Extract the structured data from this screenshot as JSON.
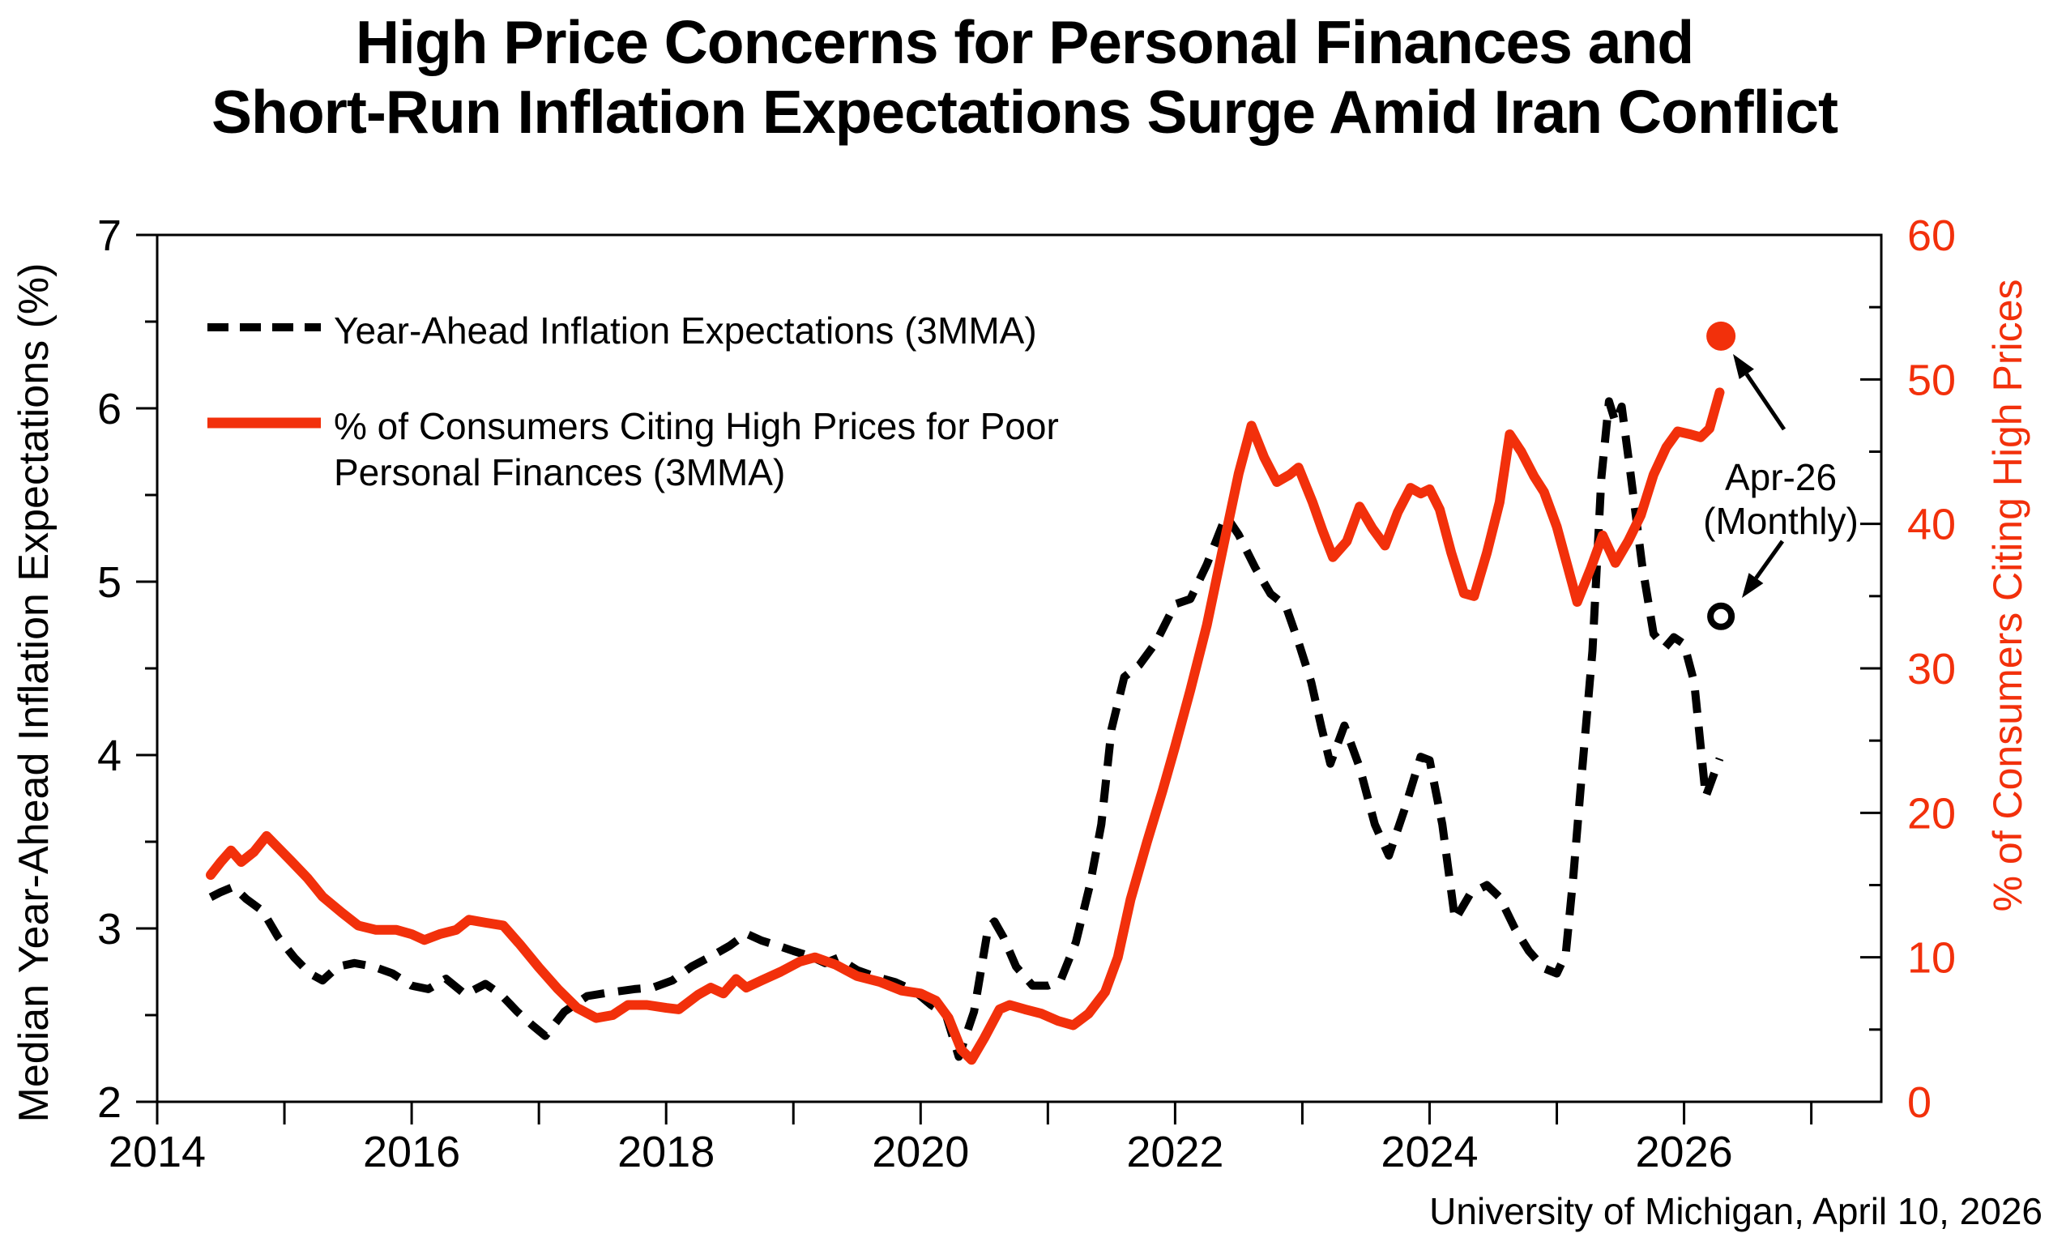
{
  "title": {
    "line1": "High Price Concerns for Personal Finances and",
    "line2": "Short-Run Inflation Expectations Surge Amid Iran Conflict"
  },
  "legend": {
    "item1_label": "Year-Ahead Inflation Expectations (3MMA)",
    "item2_label_line1": "% of Consumers Citing High Prices for Poor",
    "item2_label_line2": "Personal Finances (3MMA)"
  },
  "annotation": {
    "line1": "Apr-26",
    "line2": "(Monthly)"
  },
  "footer": {
    "source": "University of Michigan, April 10, 2026"
  },
  "chart_data": {
    "type": "line",
    "title": "High Price Concerns for Personal Finances and Short-Run Inflation Expectations Surge Amid Iran Conflict",
    "grid": false,
    "legend_position": "top-left-inside",
    "x_axis": {
      "min": 2014,
      "max": 2027.55,
      "labeled_ticks": [
        2014,
        2016,
        2018,
        2020,
        2022,
        2024,
        2026
      ],
      "minor_ticks": [
        2015,
        2017,
        2019,
        2021,
        2023,
        2025,
        2027
      ]
    },
    "left_axis": {
      "label": "Median Year-Ahead Inflation Expectations (%)",
      "min": 2,
      "max": 7,
      "major_ticks": [
        2,
        3,
        4,
        5,
        6,
        7
      ],
      "minor_tick_step": 0.5,
      "color": "#000000"
    },
    "right_axis": {
      "label": "% of Consumers Citing High Prices",
      "min": 0,
      "max": 60,
      "major_ticks": [
        0,
        10,
        20,
        30,
        40,
        50,
        60
      ],
      "minor_tick_step": 5,
      "color": "#F2300B"
    },
    "series": [
      {
        "name": "Year-Ahead Inflation Expectations (3MMA)",
        "axis": "left",
        "style": "dashed",
        "color": "#000000",
        "points": [
          [
            2014.42,
            3.18
          ],
          [
            2014.5,
            3.21
          ],
          [
            2014.6,
            3.24
          ],
          [
            2014.7,
            3.17
          ],
          [
            2014.83,
            3.1
          ],
          [
            2014.95,
            2.95
          ],
          [
            2015.08,
            2.83
          ],
          [
            2015.2,
            2.74
          ],
          [
            2015.3,
            2.7
          ],
          [
            2015.42,
            2.78
          ],
          [
            2015.55,
            2.8
          ],
          [
            2015.7,
            2.78
          ],
          [
            2015.85,
            2.74
          ],
          [
            2016.0,
            2.67
          ],
          [
            2016.13,
            2.65
          ],
          [
            2016.27,
            2.71
          ],
          [
            2016.42,
            2.62
          ],
          [
            2016.58,
            2.68
          ],
          [
            2016.7,
            2.62
          ],
          [
            2016.83,
            2.52
          ],
          [
            2016.95,
            2.44
          ],
          [
            2017.05,
            2.38
          ],
          [
            2017.2,
            2.52
          ],
          [
            2017.38,
            2.61
          ],
          [
            2017.55,
            2.63
          ],
          [
            2017.75,
            2.65
          ],
          [
            2017.9,
            2.66
          ],
          [
            2018.05,
            2.7
          ],
          [
            2018.2,
            2.78
          ],
          [
            2018.38,
            2.85
          ],
          [
            2018.5,
            2.9
          ],
          [
            2018.63,
            2.97
          ],
          [
            2018.75,
            2.93
          ],
          [
            2018.88,
            2.9
          ],
          [
            2019.0,
            2.87
          ],
          [
            2019.13,
            2.84
          ],
          [
            2019.25,
            2.8
          ],
          [
            2019.35,
            2.83
          ],
          [
            2019.5,
            2.76
          ],
          [
            2019.65,
            2.72
          ],
          [
            2019.8,
            2.69
          ],
          [
            2019.95,
            2.64
          ],
          [
            2020.08,
            2.56
          ],
          [
            2020.2,
            2.5
          ],
          [
            2020.3,
            2.26
          ],
          [
            2020.42,
            2.52
          ],
          [
            2020.53,
            3.0
          ],
          [
            2020.58,
            3.04
          ],
          [
            2020.65,
            2.95
          ],
          [
            2020.75,
            2.78
          ],
          [
            2020.88,
            2.67
          ],
          [
            2021.0,
            2.67
          ],
          [
            2021.1,
            2.7
          ],
          [
            2021.22,
            2.92
          ],
          [
            2021.33,
            3.25
          ],
          [
            2021.42,
            3.6
          ],
          [
            2021.5,
            4.15
          ],
          [
            2021.6,
            4.45
          ],
          [
            2021.72,
            4.52
          ],
          [
            2021.85,
            4.65
          ],
          [
            2022.0,
            4.87
          ],
          [
            2022.12,
            4.9
          ],
          [
            2022.25,
            5.1
          ],
          [
            2022.4,
            5.38
          ],
          [
            2022.5,
            5.27
          ],
          [
            2022.63,
            5.08
          ],
          [
            2022.75,
            4.93
          ],
          [
            2022.87,
            4.86
          ],
          [
            2022.97,
            4.65
          ],
          [
            2023.07,
            4.42
          ],
          [
            2023.15,
            4.16
          ],
          [
            2023.22,
            3.95
          ],
          [
            2023.33,
            4.17
          ],
          [
            2023.45,
            3.93
          ],
          [
            2023.57,
            3.6
          ],
          [
            2023.68,
            3.42
          ],
          [
            2023.8,
            3.68
          ],
          [
            2023.93,
            3.99
          ],
          [
            2024.0,
            3.97
          ],
          [
            2024.1,
            3.6
          ],
          [
            2024.2,
            3.05
          ],
          [
            2024.32,
            3.2
          ],
          [
            2024.45,
            3.25
          ],
          [
            2024.55,
            3.18
          ],
          [
            2024.67,
            3.0
          ],
          [
            2024.78,
            2.87
          ],
          [
            2024.9,
            2.77
          ],
          [
            2025.0,
            2.74
          ],
          [
            2025.07,
            2.85
          ],
          [
            2025.13,
            3.3
          ],
          [
            2025.2,
            3.92
          ],
          [
            2025.28,
            4.6
          ],
          [
            2025.35,
            5.6
          ],
          [
            2025.41,
            6.04
          ],
          [
            2025.46,
            5.92
          ],
          [
            2025.51,
            6.01
          ],
          [
            2025.58,
            5.62
          ],
          [
            2025.67,
            5.1
          ],
          [
            2025.76,
            4.7
          ],
          [
            2025.85,
            4.62
          ],
          [
            2025.92,
            4.68
          ],
          [
            2026.0,
            4.64
          ],
          [
            2026.08,
            4.42
          ],
          [
            2026.17,
            3.76
          ],
          [
            2026.28,
            3.98
          ]
        ]
      },
      {
        "name": "% of Consumers Citing High Prices for Poor Personal Finances (3MMA)",
        "axis": "right",
        "style": "solid",
        "color": "#F2300B",
        "points": [
          [
            2014.42,
            15.7
          ],
          [
            2014.5,
            16.6
          ],
          [
            2014.58,
            17.4
          ],
          [
            2014.66,
            16.6
          ],
          [
            2014.76,
            17.3
          ],
          [
            2014.86,
            18.4
          ],
          [
            2014.96,
            17.5
          ],
          [
            2015.06,
            16.6
          ],
          [
            2015.18,
            15.5
          ],
          [
            2015.3,
            14.2
          ],
          [
            2015.45,
            13.1
          ],
          [
            2015.58,
            12.2
          ],
          [
            2015.72,
            11.9
          ],
          [
            2015.88,
            11.9
          ],
          [
            2016.0,
            11.6
          ],
          [
            2016.1,
            11.2
          ],
          [
            2016.22,
            11.6
          ],
          [
            2016.35,
            11.9
          ],
          [
            2016.45,
            12.6
          ],
          [
            2016.58,
            12.4
          ],
          [
            2016.72,
            12.2
          ],
          [
            2016.85,
            10.9
          ],
          [
            2017.0,
            9.3
          ],
          [
            2017.15,
            7.8
          ],
          [
            2017.3,
            6.5
          ],
          [
            2017.45,
            5.8
          ],
          [
            2017.58,
            6.0
          ],
          [
            2017.7,
            6.7
          ],
          [
            2017.85,
            6.7
          ],
          [
            2018.0,
            6.5
          ],
          [
            2018.1,
            6.4
          ],
          [
            2018.25,
            7.4
          ],
          [
            2018.35,
            7.9
          ],
          [
            2018.45,
            7.5
          ],
          [
            2018.55,
            8.5
          ],
          [
            2018.63,
            7.9
          ],
          [
            2018.75,
            8.4
          ],
          [
            2018.9,
            9.0
          ],
          [
            2019.05,
            9.7
          ],
          [
            2019.17,
            10.0
          ],
          [
            2019.33,
            9.5
          ],
          [
            2019.5,
            8.7
          ],
          [
            2019.68,
            8.3
          ],
          [
            2019.85,
            7.7
          ],
          [
            2020.0,
            7.5
          ],
          [
            2020.12,
            7.0
          ],
          [
            2020.22,
            5.8
          ],
          [
            2020.32,
            3.6
          ],
          [
            2020.4,
            2.9
          ],
          [
            2020.5,
            4.4
          ],
          [
            2020.62,
            6.4
          ],
          [
            2020.7,
            6.7
          ],
          [
            2020.82,
            6.4
          ],
          [
            2020.95,
            6.1
          ],
          [
            2021.08,
            5.6
          ],
          [
            2021.2,
            5.3
          ],
          [
            2021.32,
            6.1
          ],
          [
            2021.45,
            7.6
          ],
          [
            2021.55,
            10.0
          ],
          [
            2021.65,
            14.0
          ],
          [
            2021.78,
            18.0
          ],
          [
            2021.9,
            21.5
          ],
          [
            2022.0,
            24.6
          ],
          [
            2022.12,
            28.5
          ],
          [
            2022.25,
            33.0
          ],
          [
            2022.38,
            38.5
          ],
          [
            2022.5,
            43.5
          ],
          [
            2022.6,
            46.8
          ],
          [
            2022.7,
            44.6
          ],
          [
            2022.8,
            42.9
          ],
          [
            2022.9,
            43.4
          ],
          [
            2022.97,
            43.9
          ],
          [
            2023.08,
            41.5
          ],
          [
            2023.16,
            39.5
          ],
          [
            2023.24,
            37.7
          ],
          [
            2023.35,
            38.8
          ],
          [
            2023.45,
            41.2
          ],
          [
            2023.55,
            39.7
          ],
          [
            2023.65,
            38.5
          ],
          [
            2023.75,
            40.8
          ],
          [
            2023.85,
            42.5
          ],
          [
            2023.93,
            42.1
          ],
          [
            2024.0,
            42.4
          ],
          [
            2024.08,
            41.0
          ],
          [
            2024.17,
            38.0
          ],
          [
            2024.27,
            35.2
          ],
          [
            2024.35,
            35.0
          ],
          [
            2024.45,
            38.0
          ],
          [
            2024.55,
            41.5
          ],
          [
            2024.63,
            46.2
          ],
          [
            2024.72,
            45.0
          ],
          [
            2024.82,
            43.3
          ],
          [
            2024.9,
            42.2
          ],
          [
            2025.0,
            39.8
          ],
          [
            2025.08,
            37.2
          ],
          [
            2025.16,
            34.6
          ],
          [
            2025.27,
            37.0
          ],
          [
            2025.36,
            39.2
          ],
          [
            2025.46,
            37.3
          ],
          [
            2025.56,
            38.8
          ],
          [
            2025.66,
            40.6
          ],
          [
            2025.76,
            43.4
          ],
          [
            2025.86,
            45.3
          ],
          [
            2025.95,
            46.4
          ],
          [
            2026.05,
            46.2
          ],
          [
            2026.13,
            46.0
          ],
          [
            2026.2,
            46.6
          ],
          [
            2026.28,
            49.1
          ]
        ]
      }
    ],
    "markers": [
      {
        "name": "apr-26-monthly-high-prices",
        "axis": "right",
        "x": 2026.29,
        "y": 53.0,
        "shape": "filled-dot",
        "color": "#F2300B"
      },
      {
        "name": "apr-26-monthly-inflation-expectations",
        "axis": "left",
        "x": 2026.29,
        "y": 4.8,
        "shape": "open-circle",
        "color": "#000000"
      }
    ]
  }
}
